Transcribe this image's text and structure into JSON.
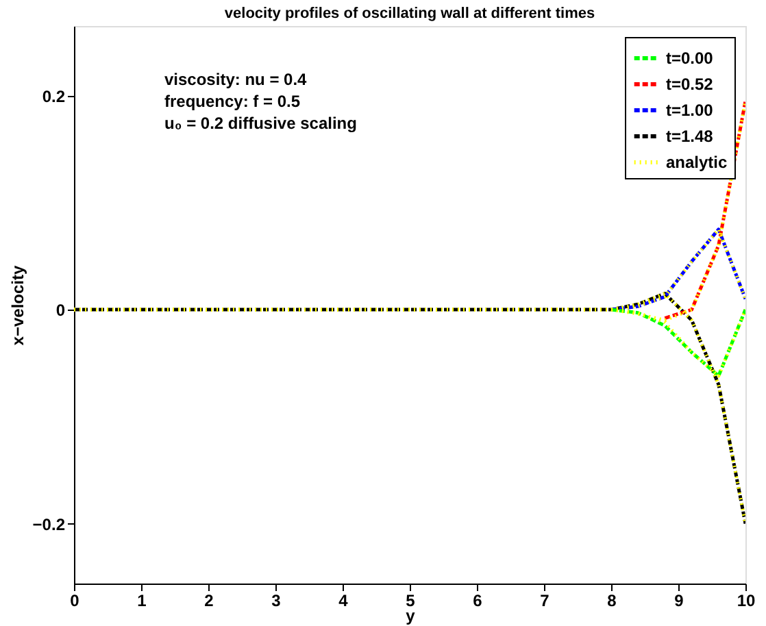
{
  "chart_data": {
    "type": "line",
    "title": "velocity profiles of oscillating wall at different times",
    "xlabel": "y",
    "ylabel": "x−velocity",
    "x": [
      0,
      0.4,
      0.8,
      1.2,
      1.6,
      2.0,
      2.4,
      2.8,
      3.2,
      3.6,
      4.0,
      4.4,
      4.8,
      5.2,
      5.6,
      6.0,
      6.4,
      6.8,
      7.2,
      7.6,
      8.0,
      8.4,
      8.8,
      9.2,
      9.6,
      10
    ],
    "series": [
      {
        "name": "t=0.00",
        "color": "#00ff00",
        "line_style": "dashed",
        "values": [
          null,
          null,
          null,
          null,
          null,
          null,
          null,
          null,
          null,
          null,
          null,
          null,
          null,
          null,
          null,
          null,
          null,
          null,
          null,
          null,
          0,
          -0.003,
          -0.015,
          -0.04,
          -0.062,
          0
        ]
      },
      {
        "name": "t=0.52",
        "color": "#ff0000",
        "line_style": "dashed",
        "values": [
          null,
          null,
          null,
          null,
          null,
          null,
          null,
          null,
          null,
          null,
          null,
          null,
          null,
          null,
          null,
          null,
          null,
          null,
          null,
          null,
          null,
          null,
          -0.008,
          0.0,
          0.06,
          0.195
        ]
      },
      {
        "name": "t=1.00",
        "color": "#0000ff",
        "line_style": "dashed",
        "values": [
          null,
          null,
          null,
          null,
          null,
          null,
          null,
          null,
          null,
          null,
          null,
          null,
          null,
          null,
          null,
          null,
          null,
          null,
          null,
          null,
          0,
          0.003,
          0.012,
          0.045,
          0.075,
          0.01
        ]
      },
      {
        "name": "t=1.48",
        "color": "#000000",
        "line_style": "dashed",
        "values": [
          0,
          0,
          0,
          0,
          0,
          0,
          0,
          0,
          0,
          0,
          0,
          0,
          0,
          0,
          0,
          0,
          0,
          0,
          0,
          0,
          0,
          0.005,
          0.015,
          -0.01,
          -0.07,
          -0.2
        ]
      },
      {
        "name": "analytic",
        "color": "#ffff00",
        "line_style": "dotted",
        "values": [
          0,
          0,
          0,
          0,
          0,
          0,
          0,
          0,
          0,
          0,
          0,
          0,
          0,
          0,
          0,
          0,
          0,
          0,
          0,
          0,
          0,
          -0.003,
          -0.012,
          -0.04,
          -0.062,
          0
        ]
      },
      {
        "color": "#ffff00",
        "line_style": "dotted",
        "values": [
          0,
          0,
          0,
          0,
          0,
          0,
          0,
          0,
          0,
          0,
          0,
          0,
          0,
          0,
          0,
          0,
          0,
          0,
          0,
          0,
          0,
          -0.004,
          -0.01,
          0.0,
          0.06,
          0.195
        ]
      },
      {
        "color": "#ffff00",
        "line_style": "dotted",
        "values": [
          0,
          0,
          0,
          0,
          0,
          0,
          0,
          0,
          0,
          0,
          0,
          0,
          0,
          0,
          0,
          0,
          0,
          0,
          0,
          0,
          0,
          0.003,
          0.012,
          0.045,
          0.075,
          0.01
        ]
      },
      {
        "color": "#ffff00",
        "line_style": "dotted",
        "values": [
          0,
          0,
          0,
          0,
          0,
          0,
          0,
          0,
          0,
          0,
          0,
          0,
          0,
          0,
          0,
          0,
          0,
          0,
          0,
          0,
          0,
          0.005,
          0.015,
          -0.01,
          -0.07,
          -0.2
        ]
      }
    ],
    "annotations": [
      "viscosity: nu = 0.4",
      "frequency: f  = 0.5",
      "u₀ = 0.2   diffusive scaling"
    ],
    "xlim": [
      0,
      10
    ],
    "xticks": [
      0,
      1,
      2,
      3,
      4,
      5,
      6,
      7,
      8,
      9,
      10
    ],
    "ylim": [
      -0.256,
      0.265
    ],
    "yticks": [
      -0.2,
      0,
      0.2
    ],
    "legend": "top right",
    "grid": false
  }
}
